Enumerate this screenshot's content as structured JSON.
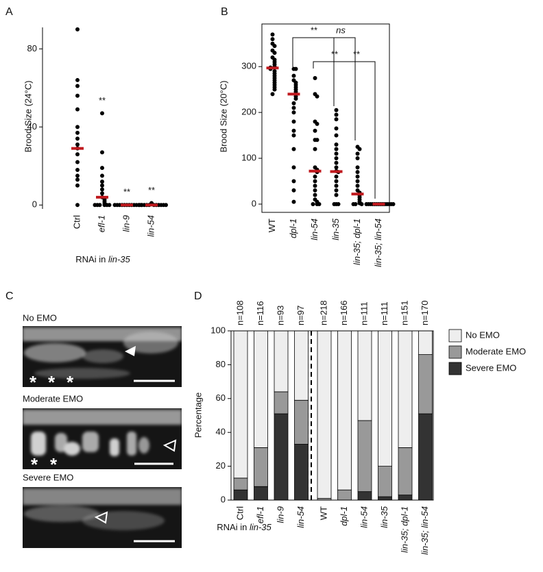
{
  "chart_data": [
    {
      "type": "strip",
      "panel": "A",
      "ylabel": "Brood Size (24°C)",
      "xlabel_parts": [
        {
          "text": "RNAi in "
        },
        {
          "text": "lin-35",
          "italic": true
        }
      ],
      "categories": [
        "Ctrl",
        "efl-1",
        "lin-9",
        "lin-54"
      ],
      "category_styles": [
        "normal",
        "italic",
        "italic",
        "italic"
      ],
      "values": [
        [
          90,
          64,
          61,
          56,
          49,
          40,
          37,
          34,
          31,
          29,
          26,
          22,
          18,
          15,
          13,
          10,
          0
        ],
        [
          47,
          27,
          19,
          15,
          12,
          10,
          8,
          6,
          4,
          3,
          2,
          1,
          0,
          0,
          0,
          0,
          0,
          0
        ],
        [
          0,
          0,
          0,
          0,
          0,
          0,
          0,
          0,
          0,
          0,
          0,
          0
        ],
        [
          1,
          0,
          0,
          0,
          0,
          0,
          0,
          0,
          0,
          0,
          0,
          0
        ]
      ],
      "medians": [
        29,
        4,
        0,
        0
      ],
      "significance": [
        null,
        "**",
        "**",
        "**"
      ],
      "color": "#000000",
      "median_color": "#c0191e",
      "ylim": [
        -2,
        91
      ],
      "yticks": [
        0,
        40,
        80
      ],
      "frame": false
    },
    {
      "type": "strip",
      "panel": "B",
      "ylabel": "Brood Size (20°C)",
      "categories": [
        "WT",
        "dpl-1",
        "lin-54",
        "lin-35",
        "lin-35; dpl-1",
        "lin-35; lin-54"
      ],
      "category_styles": [
        "normal",
        "italic",
        "italic",
        "italic",
        "italic",
        "italic"
      ],
      "values": [
        [
          370,
          360,
          350,
          345,
          335,
          330,
          320,
          315,
          310,
          305,
          300,
          298,
          295,
          290,
          285,
          280,
          275,
          270,
          265,
          260,
          255,
          250,
          240
        ],
        [
          295,
          295,
          280,
          270,
          265,
          260,
          255,
          250,
          245,
          240,
          235,
          230,
          220,
          210,
          200,
          180,
          160,
          150,
          120,
          80,
          50,
          30,
          5
        ],
        [
          275,
          240,
          235,
          180,
          175,
          160,
          140,
          140,
          120,
          80,
          75,
          70,
          60,
          50,
          40,
          30,
          20,
          10,
          5,
          0,
          0,
          0
        ],
        [
          205,
          195,
          185,
          165,
          150,
          130,
          120,
          110,
          100,
          90,
          80,
          72,
          70,
          60,
          50,
          40,
          30,
          20,
          0,
          0,
          0
        ],
        [
          125,
          120,
          110,
          100,
          80,
          70,
          60,
          50,
          40,
          30,
          25,
          20,
          15,
          10,
          5,
          2,
          0,
          0,
          0
        ],
        [
          0,
          0,
          0,
          0,
          0,
          0,
          0,
          0,
          0,
          0,
          0,
          0,
          0,
          0
        ]
      ],
      "medians": [
        297,
        240,
        72,
        71,
        22,
        0
      ],
      "annotations": [
        "**",
        "ns",
        "**",
        "**"
      ],
      "color": "#000000",
      "median_color": "#c0191e",
      "ylim": [
        -18,
        393
      ],
      "yticks": [
        0,
        100,
        200,
        300
      ],
      "frame": true
    },
    {
      "type": "stacked_bar",
      "panel": "D",
      "ylabel": "Percentage",
      "xlabel_parts": [
        {
          "text": "RNAi in "
        },
        {
          "text": "lin-35",
          "italic": true
        }
      ],
      "categories": [
        "Ctrl",
        "efl-1",
        "lin-9",
        "lin-54",
        "WT",
        "dpl-1",
        "lin-54",
        "lin-35",
        "lin-35; dpl-1",
        "lin-35; lin-54"
      ],
      "category_styles": [
        "normal",
        "italic",
        "italic",
        "italic",
        "normal",
        "italic",
        "italic",
        "italic",
        "italic",
        "italic"
      ],
      "n_labels": [
        "n=108",
        "n=116",
        "n=93",
        "n=97",
        "n=218",
        "n=166",
        "n=111",
        "n=111",
        "n=151",
        "n=170"
      ],
      "series": [
        {
          "name": "No EMO",
          "color": "#eeeeee",
          "values": [
            87,
            69,
            36,
            41,
            99,
            94,
            53,
            80,
            69,
            14
          ]
        },
        {
          "name": "Moderate EMO",
          "color": "#999999",
          "values": [
            7,
            23,
            13,
            26,
            1,
            6,
            42,
            18,
            28,
            35
          ]
        },
        {
          "name": "Severe EMO",
          "color": "#333333",
          "values": [
            6,
            8,
            51,
            33,
            0,
            0,
            5,
            2,
            3,
            51
          ]
        }
      ],
      "ylim": [
        0,
        100
      ],
      "yticks": [
        0,
        20,
        40,
        60,
        80,
        100
      ]
    }
  ],
  "panel_c": {
    "panel": "C",
    "images": [
      {
        "label": "No EMO",
        "asterisks": [
          "*",
          "*",
          "*"
        ]
      },
      {
        "label": "Moderate EMO",
        "asterisks": [
          "*",
          "*"
        ]
      },
      {
        "label": "Severe EMO"
      }
    ]
  }
}
